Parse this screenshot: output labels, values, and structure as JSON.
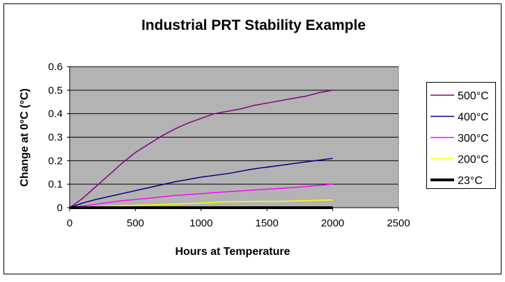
{
  "chart_data": {
    "type": "line",
    "title": "Industrial PRT Stability Example",
    "xlabel": "Hours at Temperature",
    "ylabel": "Change at 0°C (°C)",
    "xlim": [
      0,
      2500
    ],
    "ylim": [
      0,
      0.6
    ],
    "xticks": [
      "0",
      "500",
      "1000",
      "1500",
      "2000",
      "2500"
    ],
    "yticks": [
      "0",
      "0.1",
      "0.2",
      "0.3",
      "0.4",
      "0.5",
      "0.6"
    ],
    "grid": "horizontal",
    "legend": "right",
    "plot_background": "#b3b3b3",
    "series": [
      {
        "name": "500°C",
        "color": "#800080",
        "x": [
          0,
          100,
          200,
          300,
          400,
          500,
          600,
          700,
          800,
          900,
          1000,
          1100,
          1200,
          1300,
          1400,
          1500,
          1600,
          1700,
          1800,
          1900,
          2000
        ],
        "y": [
          0,
          0.04,
          0.09,
          0.14,
          0.19,
          0.235,
          0.27,
          0.305,
          0.335,
          0.36,
          0.38,
          0.4,
          0.41,
          0.42,
          0.435,
          0.445,
          0.455,
          0.465,
          0.475,
          0.49,
          0.5
        ]
      },
      {
        "name": "400°C",
        "color": "#000080",
        "x": [
          0,
          100,
          200,
          400,
          600,
          800,
          1000,
          1200,
          1400,
          1600,
          1800,
          2000
        ],
        "y": [
          0,
          0.02,
          0.035,
          0.06,
          0.085,
          0.11,
          0.13,
          0.145,
          0.165,
          0.18,
          0.195,
          0.21
        ]
      },
      {
        "name": "300°C",
        "color": "#ff00ff",
        "x": [
          0,
          200,
          400,
          600,
          800,
          1000,
          1200,
          1400,
          1600,
          1800,
          2000
        ],
        "y": [
          0,
          0.015,
          0.03,
          0.04,
          0.052,
          0.06,
          0.068,
          0.075,
          0.082,
          0.09,
          0.1
        ]
      },
      {
        "name": "200°C",
        "color": "#ffff00",
        "x": [
          0,
          400,
          800,
          1000,
          1200,
          1600,
          2000
        ],
        "y": [
          0,
          0.008,
          0.015,
          0.02,
          0.025,
          0.027,
          0.033
        ]
      },
      {
        "name": "23°C",
        "color": "#000000",
        "x": [
          0,
          2000
        ],
        "y": [
          0,
          0
        ]
      }
    ]
  }
}
